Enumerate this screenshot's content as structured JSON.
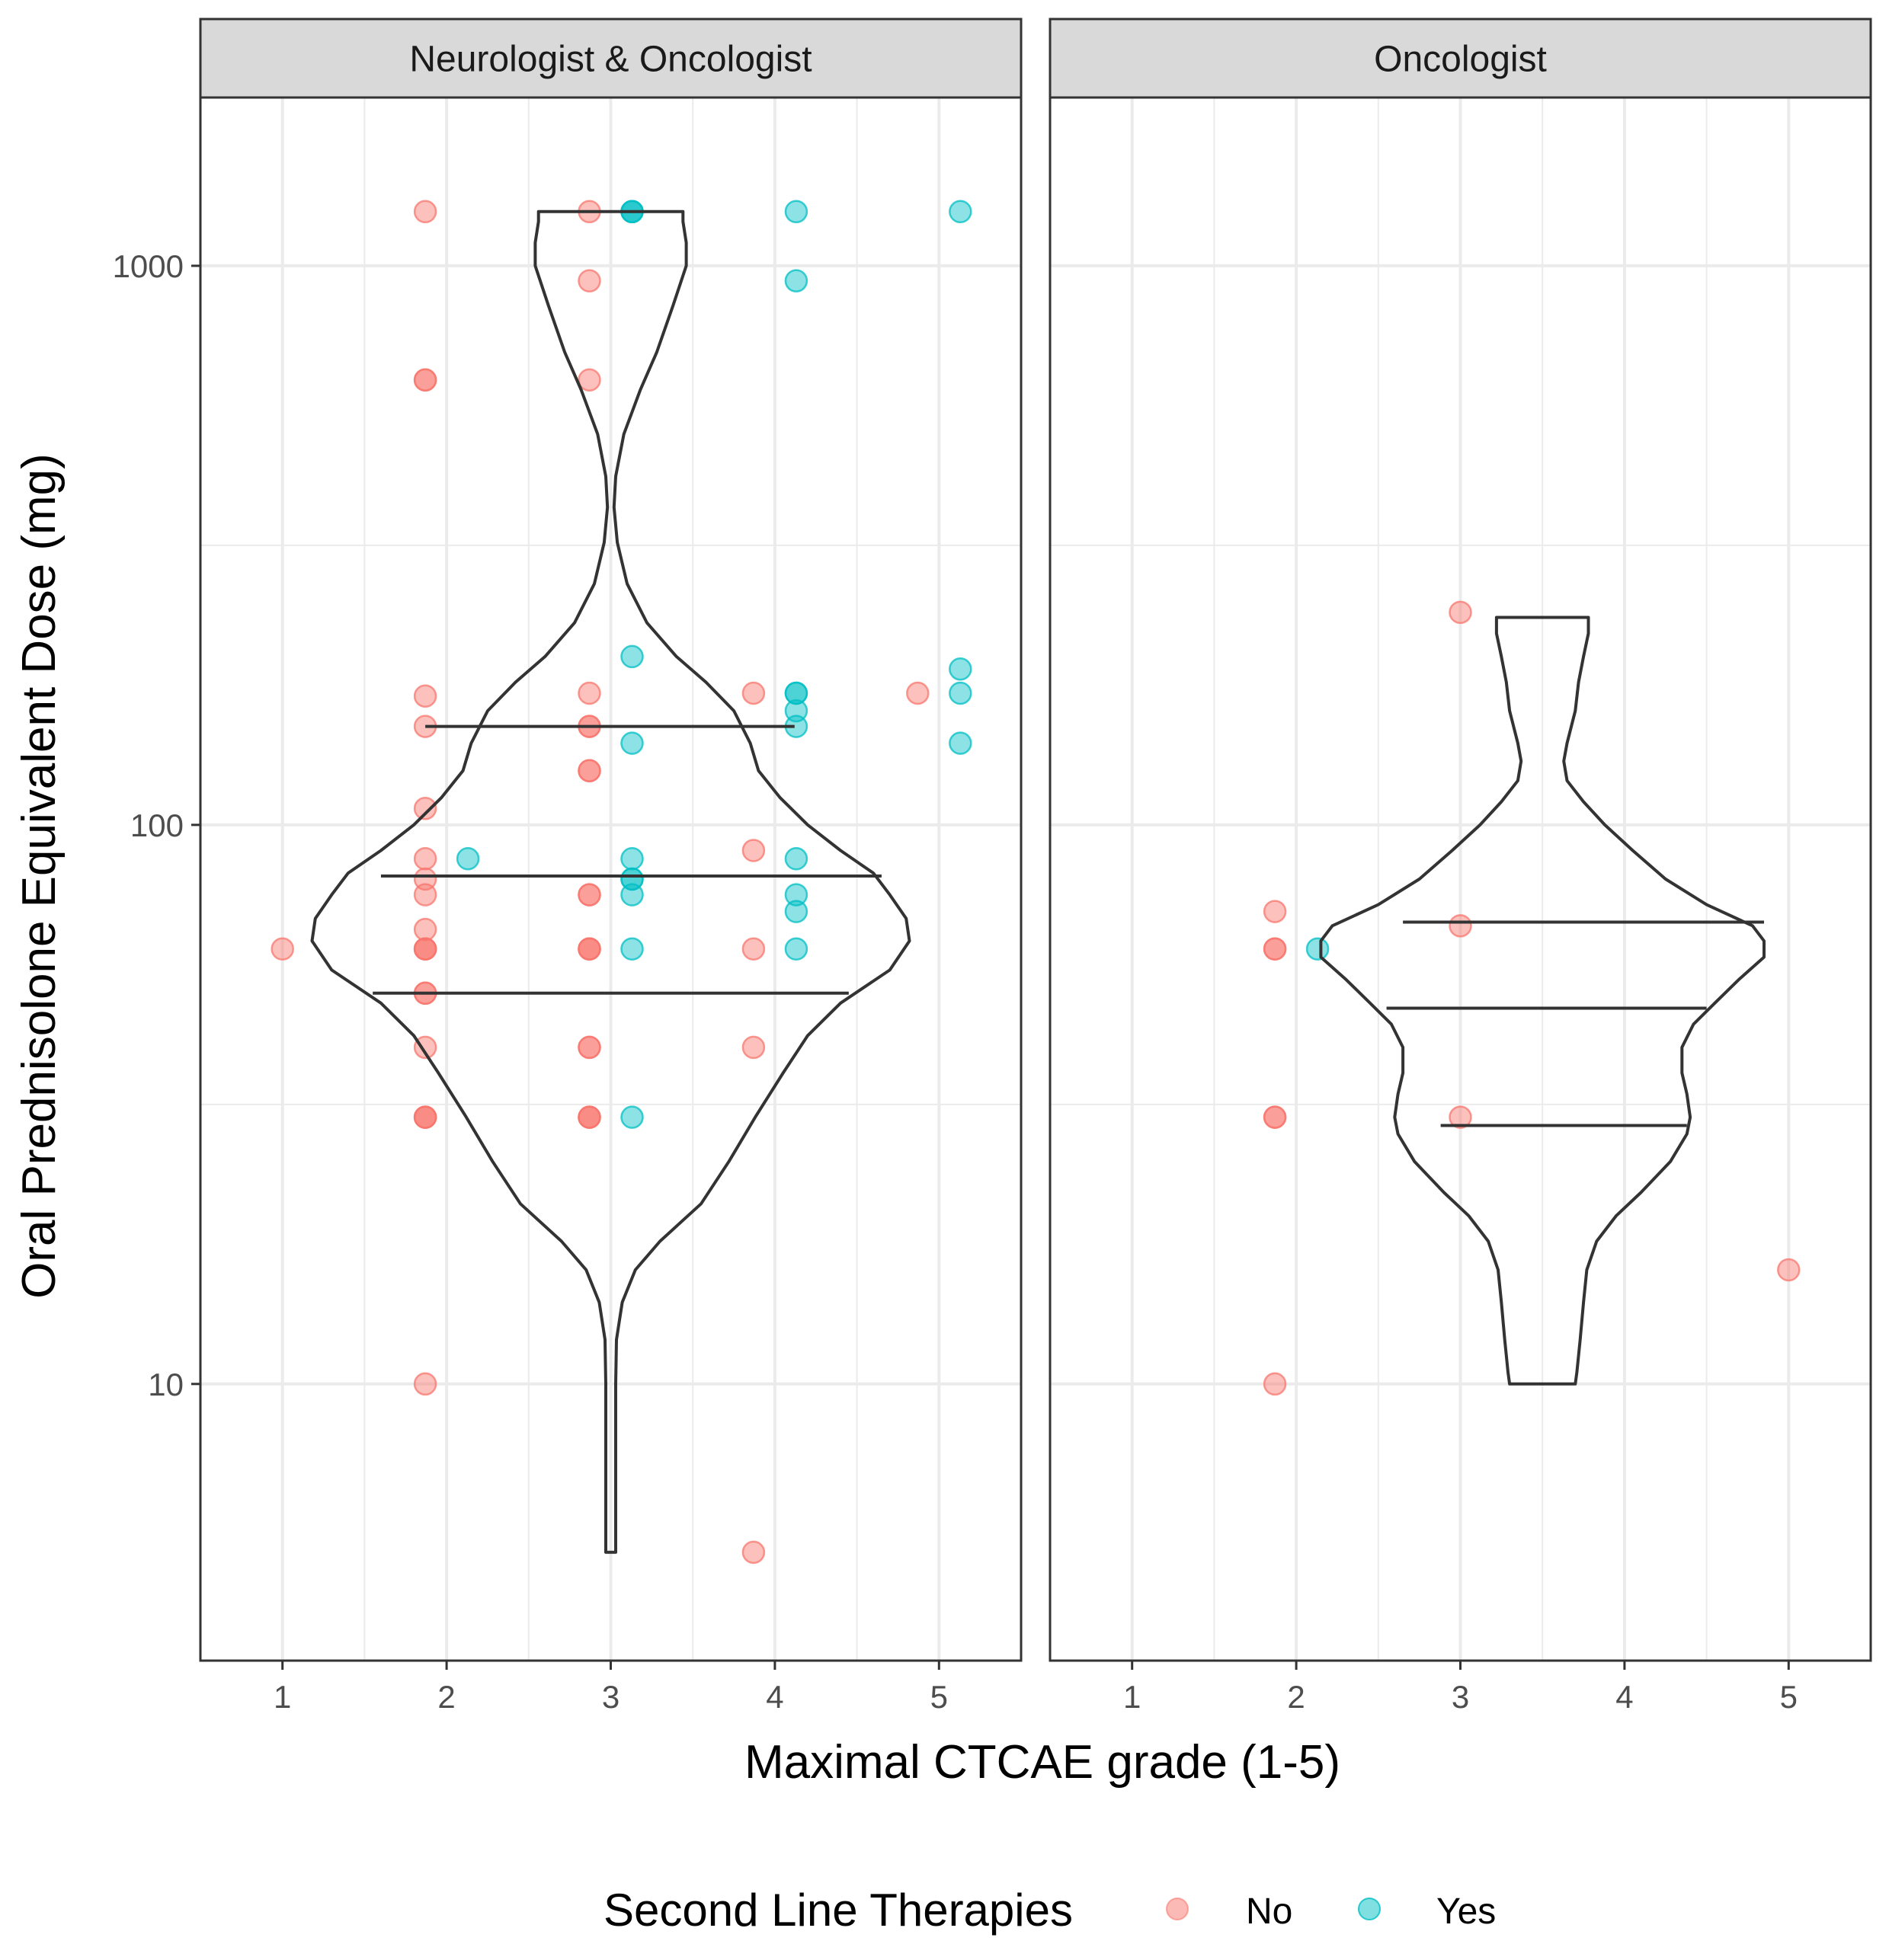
{
  "colors": {
    "no": "#F8766D",
    "yes": "#00BFC4",
    "grid": "#EBEBEB",
    "strip_fill": "#D9D9D9",
    "frame": "#333333",
    "violin": "#333333"
  },
  "chart_data": {
    "type": "scatter",
    "subtype": "faceted violin plot with jittered points",
    "xlabel": "Maximal CTCAE grade (1-5)",
    "ylabel": "Oral Prednisolone Equivalent Dose (mg)",
    "y_scale": "log10",
    "ylim": [
      3.2,
      2000
    ],
    "xlim": [
      0.5,
      5.5
    ],
    "x_ticks": [
      "1",
      "2",
      "3",
      "4",
      "5"
    ],
    "y_ticks": [
      {
        "value": 10,
        "label": "10"
      },
      {
        "value": 100,
        "label": "100"
      },
      {
        "value": 1000,
        "label": "1000"
      }
    ],
    "grid": true,
    "legend": {
      "title": "Second Line Therapies",
      "position": "bottom",
      "entries": [
        "No",
        "Yes"
      ]
    },
    "facets": [
      {
        "title": "Neurologist & Oncologist",
        "violin": {
          "x_center": 3,
          "profile": [
            [
              5,
              0.03
            ],
            [
              6,
              0.03
            ],
            [
              8,
              0.03
            ],
            [
              10,
              0.03
            ],
            [
              12,
              0.035
            ],
            [
              14,
              0.07
            ],
            [
              16,
              0.15
            ],
            [
              18,
              0.3
            ],
            [
              21,
              0.55
            ],
            [
              25,
              0.72
            ],
            [
              30,
              0.88
            ],
            [
              36,
              1.05
            ],
            [
              42,
              1.2
            ],
            [
              48,
              1.4
            ],
            [
              55,
              1.7
            ],
            [
              62,
              1.82
            ],
            [
              68,
              1.8
            ],
            [
              75,
              1.7
            ],
            [
              82,
              1.6
            ],
            [
              90,
              1.4
            ],
            [
              100,
              1.2
            ],
            [
              112,
              1.03
            ],
            [
              125,
              0.9
            ],
            [
              140,
              0.85
            ],
            [
              160,
              0.75
            ],
            [
              180,
              0.58
            ],
            [
              200,
              0.4
            ],
            [
              230,
              0.22
            ],
            [
              270,
              0.1
            ],
            [
              320,
              0.04
            ],
            [
              370,
              0.02
            ],
            [
              420,
              0.03
            ],
            [
              500,
              0.08
            ],
            [
              600,
              0.18
            ],
            [
              700,
              0.28
            ],
            [
              850,
              0.38
            ],
            [
              1000,
              0.46
            ],
            [
              1100,
              0.46
            ],
            [
              1200,
              0.44
            ],
            [
              1250,
              0.44
            ]
          ],
          "quantiles": [
            {
              "y": 50,
              "x_from": 1.55,
              "x_to": 4.45
            },
            {
              "y": 81,
              "x_from": 1.6,
              "x_to": 4.65
            },
            {
              "y": 150,
              "x_from": 1.87,
              "x_to": 4.12
            }
          ]
        },
        "points": [
          {
            "x": 1.0,
            "y": 60,
            "group": "No"
          },
          {
            "x": 1.87,
            "y": 1250,
            "group": "No"
          },
          {
            "x": 1.87,
            "y": 625,
            "group": "No"
          },
          {
            "x": 1.87,
            "y": 625,
            "group": "No"
          },
          {
            "x": 1.87,
            "y": 170,
            "group": "No"
          },
          {
            "x": 1.87,
            "y": 150,
            "group": "No"
          },
          {
            "x": 1.87,
            "y": 107,
            "group": "No"
          },
          {
            "x": 1.87,
            "y": 87,
            "group": "No"
          },
          {
            "x": 1.87,
            "y": 80,
            "group": "No"
          },
          {
            "x": 1.87,
            "y": 75,
            "group": "No"
          },
          {
            "x": 1.87,
            "y": 65,
            "group": "No"
          },
          {
            "x": 1.87,
            "y": 60,
            "group": "No"
          },
          {
            "x": 1.87,
            "y": 60,
            "group": "No"
          },
          {
            "x": 1.87,
            "y": 60,
            "group": "No"
          },
          {
            "x": 1.87,
            "y": 50,
            "group": "No"
          },
          {
            "x": 1.87,
            "y": 50,
            "group": "No"
          },
          {
            "x": 1.87,
            "y": 40,
            "group": "No"
          },
          {
            "x": 1.87,
            "y": 30,
            "group": "No"
          },
          {
            "x": 1.87,
            "y": 30,
            "group": "No"
          },
          {
            "x": 1.87,
            "y": 30,
            "group": "No"
          },
          {
            "x": 1.87,
            "y": 10,
            "group": "No"
          },
          {
            "x": 2.13,
            "y": 87,
            "group": "Yes"
          },
          {
            "x": 2.87,
            "y": 1250,
            "group": "No"
          },
          {
            "x": 2.87,
            "y": 940,
            "group": "No"
          },
          {
            "x": 2.87,
            "y": 625,
            "group": "No"
          },
          {
            "x": 2.87,
            "y": 172,
            "group": "No"
          },
          {
            "x": 2.87,
            "y": 150,
            "group": "No"
          },
          {
            "x": 2.87,
            "y": 150,
            "group": "No"
          },
          {
            "x": 2.87,
            "y": 125,
            "group": "No"
          },
          {
            "x": 2.87,
            "y": 125,
            "group": "No"
          },
          {
            "x": 2.87,
            "y": 75,
            "group": "No"
          },
          {
            "x": 2.87,
            "y": 75,
            "group": "No"
          },
          {
            "x": 2.87,
            "y": 60,
            "group": "No"
          },
          {
            "x": 2.87,
            "y": 60,
            "group": "No"
          },
          {
            "x": 2.87,
            "y": 60,
            "group": "No"
          },
          {
            "x": 2.87,
            "y": 40,
            "group": "No"
          },
          {
            "x": 2.87,
            "y": 40,
            "group": "No"
          },
          {
            "x": 2.87,
            "y": 30,
            "group": "No"
          },
          {
            "x": 2.87,
            "y": 30,
            "group": "No"
          },
          {
            "x": 2.87,
            "y": 30,
            "group": "No"
          },
          {
            "x": 3.13,
            "y": 1250,
            "group": "Yes"
          },
          {
            "x": 3.13,
            "y": 1250,
            "group": "Yes"
          },
          {
            "x": 3.13,
            "y": 1250,
            "group": "Yes"
          },
          {
            "x": 3.13,
            "y": 200,
            "group": "Yes"
          },
          {
            "x": 3.13,
            "y": 140,
            "group": "Yes"
          },
          {
            "x": 3.13,
            "y": 87,
            "group": "Yes"
          },
          {
            "x": 3.13,
            "y": 80,
            "group": "Yes"
          },
          {
            "x": 3.13,
            "y": 80,
            "group": "Yes"
          },
          {
            "x": 3.13,
            "y": 75,
            "group": "Yes"
          },
          {
            "x": 3.13,
            "y": 60,
            "group": "Yes"
          },
          {
            "x": 3.13,
            "y": 30,
            "group": "Yes"
          },
          {
            "x": 3.87,
            "y": 172,
            "group": "No"
          },
          {
            "x": 3.87,
            "y": 90,
            "group": "No"
          },
          {
            "x": 3.87,
            "y": 60,
            "group": "No"
          },
          {
            "x": 3.87,
            "y": 40,
            "group": "No"
          },
          {
            "x": 3.87,
            "y": 5,
            "group": "No"
          },
          {
            "x": 4.13,
            "y": 1250,
            "group": "Yes"
          },
          {
            "x": 4.13,
            "y": 940,
            "group": "Yes"
          },
          {
            "x": 4.13,
            "y": 172,
            "group": "Yes"
          },
          {
            "x": 4.13,
            "y": 172,
            "group": "Yes"
          },
          {
            "x": 4.13,
            "y": 160,
            "group": "Yes"
          },
          {
            "x": 4.13,
            "y": 150,
            "group": "Yes"
          },
          {
            "x": 4.13,
            "y": 87,
            "group": "Yes"
          },
          {
            "x": 4.13,
            "y": 75,
            "group": "Yes"
          },
          {
            "x": 4.13,
            "y": 70,
            "group": "Yes"
          },
          {
            "x": 4.13,
            "y": 60,
            "group": "Yes"
          },
          {
            "x": 4.87,
            "y": 172,
            "group": "No"
          },
          {
            "x": 5.13,
            "y": 1250,
            "group": "Yes"
          },
          {
            "x": 5.13,
            "y": 190,
            "group": "Yes"
          },
          {
            "x": 5.13,
            "y": 172,
            "group": "Yes"
          },
          {
            "x": 5.13,
            "y": 140,
            "group": "Yes"
          }
        ]
      },
      {
        "title": "Oncologist",
        "violin": {
          "x_center": 3.5,
          "profile": [
            [
              10,
              0.2
            ],
            [
              10.5,
              0.21
            ],
            [
              12,
              0.23
            ],
            [
              14,
              0.25
            ],
            [
              16,
              0.27
            ],
            [
              18,
              0.33
            ],
            [
              20,
              0.45
            ],
            [
              22,
              0.6
            ],
            [
              25,
              0.78
            ],
            [
              28,
              0.88
            ],
            [
              30,
              0.9
            ],
            [
              33,
              0.88
            ],
            [
              36,
              0.85
            ],
            [
              40,
              0.85
            ],
            [
              44,
              0.92
            ],
            [
              48,
              1.05
            ],
            [
              53,
              1.2
            ],
            [
              58,
              1.35
            ],
            [
              62,
              1.35
            ],
            [
              66,
              1.28
            ],
            [
              72,
              1.0
            ],
            [
              80,
              0.75
            ],
            [
              90,
              0.55
            ],
            [
              100,
              0.38
            ],
            [
              110,
              0.25
            ],
            [
              120,
              0.15
            ],
            [
              130,
              0.13
            ],
            [
              140,
              0.15
            ],
            [
              160,
              0.2
            ],
            [
              180,
              0.22
            ],
            [
              200,
              0.25
            ],
            [
              220,
              0.28
            ],
            [
              235,
              0.28
            ]
          ],
          "quantiles": [
            {
              "y": 29,
              "x_from": 2.88,
              "x_to": 4.38
            },
            {
              "y": 47,
              "x_from": 2.55,
              "x_to": 4.5
            },
            {
              "y": 67,
              "x_from": 2.65,
              "x_to": 4.85
            }
          ]
        },
        "points": [
          {
            "x": 1.87,
            "y": 70,
            "group": "No"
          },
          {
            "x": 1.87,
            "y": 60,
            "group": "No"
          },
          {
            "x": 1.87,
            "y": 60,
            "group": "No"
          },
          {
            "x": 1.87,
            "y": 30,
            "group": "No"
          },
          {
            "x": 1.87,
            "y": 30,
            "group": "No"
          },
          {
            "x": 1.87,
            "y": 10,
            "group": "No"
          },
          {
            "x": 2.13,
            "y": 60,
            "group": "Yes"
          },
          {
            "x": 3.0,
            "y": 240,
            "group": "No"
          },
          {
            "x": 3.0,
            "y": 66,
            "group": "No"
          },
          {
            "x": 3.0,
            "y": 30,
            "group": "No"
          },
          {
            "x": 5.0,
            "y": 16,
            "group": "No"
          }
        ]
      }
    ]
  }
}
